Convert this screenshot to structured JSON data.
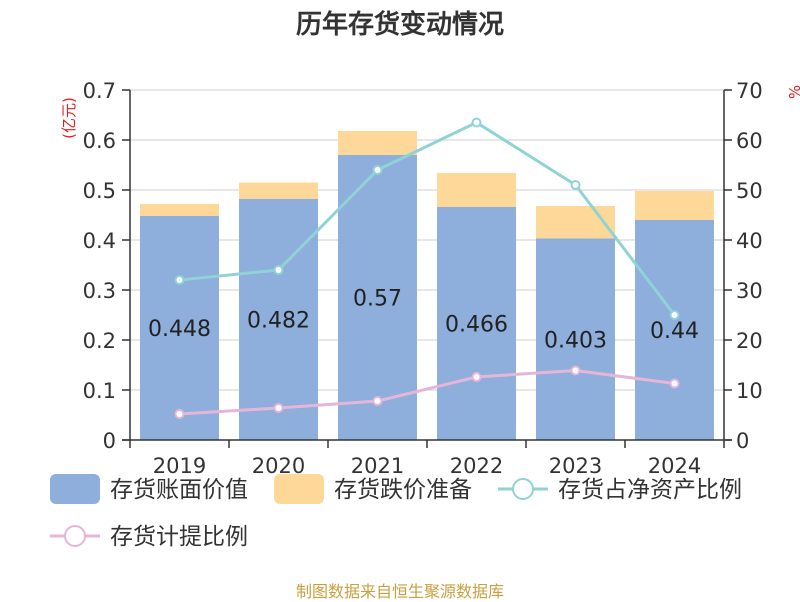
{
  "source_note": "制图数据来自恒生聚源数据库",
  "chart_data": {
    "type": "bar",
    "title": "历年存货变动情况",
    "categories": [
      "2019",
      "2020",
      "2021",
      "2022",
      "2023",
      "2024"
    ],
    "ylabel_left": "(亿元)",
    "ylabel_right": "%",
    "ylim_left": [
      0,
      0.7
    ],
    "ylim_right": [
      0,
      70
    ],
    "yticks_left": [
      "0",
      "0.1",
      "0.2",
      "0.3",
      "0.4",
      "0.5",
      "0.6",
      "0.7"
    ],
    "yticks_right": [
      "0",
      "10",
      "20",
      "30",
      "40",
      "50",
      "60",
      "70"
    ],
    "grid": true,
    "legend_position": "bottom",
    "series": [
      {
        "name": "存货账面价值",
        "kind": "bar",
        "axis": "left",
        "stack": "s",
        "color": "#8eaedb",
        "values": [
          0.448,
          0.482,
          0.57,
          0.466,
          0.403,
          0.44
        ],
        "labels": [
          "0.448",
          "0.482",
          "0.57",
          "0.466",
          "0.403",
          "0.44"
        ]
      },
      {
        "name": "存货跌价准备",
        "kind": "bar",
        "axis": "left",
        "stack": "s",
        "color": "#fdd898",
        "values": [
          0.024,
          0.033,
          0.048,
          0.068,
          0.065,
          0.058
        ]
      },
      {
        "name": "存货占净资产比例",
        "kind": "line",
        "axis": "right",
        "color": "#8fd3d6",
        "values": [
          32,
          34,
          54,
          63.5,
          51,
          25
        ]
      },
      {
        "name": "存货计提比例",
        "kind": "line",
        "axis": "right",
        "color": "#e6b6d8",
        "values": [
          5.2,
          6.4,
          7.8,
          12.6,
          13.9,
          11.3
        ]
      }
    ]
  }
}
